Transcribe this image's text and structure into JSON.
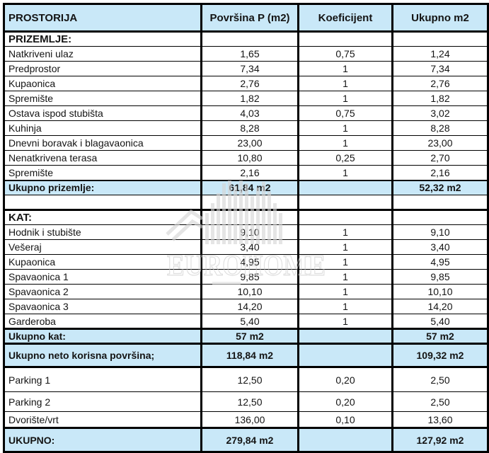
{
  "table": {
    "columns": [
      {
        "id": "prostorija",
        "label": "PROSTORIJA"
      },
      {
        "id": "povrsina",
        "label": "Površina P (m2)"
      },
      {
        "id": "koeficijent",
        "label": "Koeficijent"
      },
      {
        "id": "ukupno",
        "label": "Ukupno m2"
      }
    ],
    "rows": [
      {
        "kind": "section",
        "cells": [
          "PRIZEMLJE:",
          "",
          "",
          ""
        ]
      },
      {
        "kind": "data",
        "cells": [
          "Natkriveni ulaz",
          "1,65",
          "0,75",
          "1,24"
        ]
      },
      {
        "kind": "data",
        "cells": [
          "Predprostor",
          "7,34",
          "1",
          "7,34"
        ]
      },
      {
        "kind": "data",
        "cells": [
          "Kupaonica",
          "2,76",
          "1",
          "2,76"
        ]
      },
      {
        "kind": "data",
        "cells": [
          "Spremište",
          "1,82",
          "1",
          "1,82"
        ]
      },
      {
        "kind": "data",
        "cells": [
          "Ostava ispod stubišta",
          "4,03",
          "0,75",
          "3,02"
        ]
      },
      {
        "kind": "data",
        "cells": [
          "Kuhinja",
          "8,28",
          "1",
          "8,28"
        ]
      },
      {
        "kind": "data",
        "cells": [
          "Dnevni boravak i blagavaonica",
          "23,00",
          "1",
          "23,00"
        ]
      },
      {
        "kind": "data",
        "cells": [
          "Nenatkrivena terasa",
          "10,80",
          "0,25",
          "2,70"
        ]
      },
      {
        "kind": "data",
        "cells": [
          "Spremište",
          "2,16",
          "1",
          "2,16"
        ]
      },
      {
        "kind": "total",
        "cells": [
          "Ukupno prizemlje:",
          "61,84 m2",
          "",
          "52,32 m2"
        ]
      },
      {
        "kind": "empty",
        "cells": [
          "",
          "",
          "",
          ""
        ]
      },
      {
        "kind": "section",
        "cells": [
          "KAT:",
          "",
          "",
          ""
        ]
      },
      {
        "kind": "data",
        "cells": [
          "Hodnik i stubište",
          "9,10",
          "1",
          "9,10"
        ]
      },
      {
        "kind": "data",
        "cells": [
          "Vešeraj",
          "3,40",
          "1",
          "3,40"
        ]
      },
      {
        "kind": "data",
        "cells": [
          "Kupaonica",
          "4,95",
          "1",
          "4,95"
        ]
      },
      {
        "kind": "data",
        "cells": [
          "Spavaonica 1",
          "9,85",
          "1",
          "9,85"
        ]
      },
      {
        "kind": "data",
        "cells": [
          "Spavaonica 2",
          "10,10",
          "1",
          "10,10"
        ]
      },
      {
        "kind": "data",
        "cells": [
          "Spavaonica 3",
          "14,20",
          "1",
          "14,20"
        ]
      },
      {
        "kind": "data",
        "cells": [
          "Garderoba",
          "5,40",
          "1",
          "5,40"
        ]
      },
      {
        "kind": "total",
        "cells": [
          "Ukupno kat:",
          "57 m2",
          "",
          "57 m2"
        ]
      },
      {
        "kind": "total",
        "cells": [
          "Ukupno neto korisna površina;",
          "118,84 m2",
          "",
          "109,32 m2"
        ]
      },
      {
        "kind": "data",
        "cells": [
          "Parking 1",
          "12,50",
          "0,20",
          "2,50"
        ]
      },
      {
        "kind": "data",
        "cells": [
          "Parking 2",
          "12,50",
          "0,20",
          "2,50"
        ]
      },
      {
        "kind": "data",
        "cells": [
          "Dvorište/vrt",
          "136,00",
          "0,10",
          "13,60"
        ]
      },
      {
        "kind": "total",
        "cells": [
          "UKUPNO:",
          "279,84 m2",
          "",
          "127,92 m2"
        ]
      }
    ]
  },
  "watermark": {
    "brand": "EUROHOME"
  },
  "colors": {
    "header_bg": "#c9e8f8",
    "total_row_bg": "#c9e8f8",
    "border": "#000000",
    "text": "#141414",
    "watermark_gray": "#d8d8d8"
  }
}
